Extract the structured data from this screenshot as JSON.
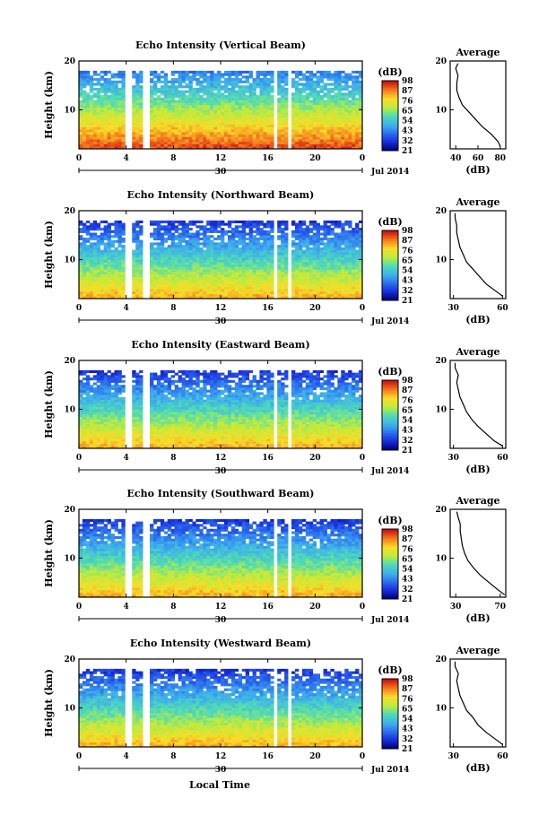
{
  "figure": {
    "xlabel": "Local Time",
    "date_label": "Jul 2014",
    "day_label": "30",
    "cbar_label": "(dB)",
    "avg_xlabel": "(dB)",
    "avg_title": "Average",
    "ylabel": "Height (km)"
  },
  "chart_data": [
    {
      "type": "heatmap",
      "title": "Echo Intensity (Vertical Beam)",
      "xlabel": "Local Time",
      "ylabel": "Height (km)",
      "x_ticks": [
        "0",
        "4",
        "8",
        "12",
        "16",
        "20",
        "0"
      ],
      "y_ticks": [
        "10",
        "20"
      ],
      "xlim": [
        0,
        24
      ],
      "ylim": [
        2,
        20
      ],
      "colorbar": {
        "label": "(dB)",
        "ticks": [
          "21",
          "32",
          "43",
          "54",
          "65",
          "76",
          "87",
          "98"
        ]
      },
      "data_gaps_hours": [
        [
          4.0,
          4.5
        ],
        [
          5.5,
          6.0
        ],
        [
          16.4,
          16.9
        ],
        [
          17.8,
          18.1
        ]
      ],
      "average_profile": {
        "title": "Average",
        "xlabel": "(dB)",
        "x_ticks": [
          "40",
          "60",
          "80"
        ],
        "xlim": [
          35,
          85
        ],
        "ylim": [
          2,
          20
        ],
        "height_km": [
          2.5,
          3.5,
          5,
          6.5,
          8,
          9.5,
          11,
          12.5,
          14,
          15.5,
          17,
          18.5,
          19.5
        ],
        "db": [
          80,
          78,
          72,
          64,
          58,
          52,
          46,
          43,
          41,
          41,
          42,
          40,
          42
        ]
      }
    },
    {
      "type": "heatmap",
      "title": "Echo Intensity (Northward Beam)",
      "xlabel": "Local Time",
      "ylabel": "Height (km)",
      "x_ticks": [
        "0",
        "4",
        "8",
        "12",
        "16",
        "20",
        "0"
      ],
      "y_ticks": [
        "10",
        "20"
      ],
      "xlim": [
        0,
        24
      ],
      "ylim": [
        2,
        20
      ],
      "colorbar": {
        "label": "(dB)",
        "ticks": [
          "21",
          "32",
          "43",
          "54",
          "65",
          "76",
          "87",
          "98"
        ]
      },
      "data_gaps_hours": [
        [
          4.0,
          4.5
        ],
        [
          5.5,
          6.0
        ],
        [
          16.4,
          16.9
        ],
        [
          17.8,
          18.1
        ]
      ],
      "average_profile": {
        "title": "Average",
        "xlabel": "(dB)",
        "x_ticks": [
          "30",
          "60"
        ],
        "xlim": [
          28,
          62
        ],
        "ylim": [
          2,
          20
        ],
        "height_km": [
          2.5,
          3.5,
          5,
          6.5,
          8,
          9.5,
          11,
          12.5,
          14,
          15.5,
          17,
          18.5,
          19.5
        ],
        "db": [
          60,
          56,
          50,
          46,
          42,
          38,
          36,
          34,
          33,
          32,
          32,
          31,
          31
        ]
      }
    },
    {
      "type": "heatmap",
      "title": "Echo Intensity (Eastward Beam)",
      "xlabel": "Local Time",
      "ylabel": "Height (km)",
      "x_ticks": [
        "0",
        "4",
        "8",
        "12",
        "16",
        "20",
        "0"
      ],
      "y_ticks": [
        "10",
        "20"
      ],
      "xlim": [
        0,
        24
      ],
      "ylim": [
        2,
        20
      ],
      "colorbar": {
        "label": "(dB)",
        "ticks": [
          "21",
          "32",
          "43",
          "54",
          "65",
          "76",
          "87",
          "98"
        ]
      },
      "data_gaps_hours": [
        [
          4.0,
          4.5
        ],
        [
          5.5,
          6.0
        ],
        [
          16.4,
          16.9
        ],
        [
          17.8,
          18.1
        ]
      ],
      "average_profile": {
        "title": "Average",
        "xlabel": "(dB)",
        "x_ticks": [
          "30",
          "60"
        ],
        "xlim": [
          28,
          62
        ],
        "ylim": [
          2,
          20
        ],
        "height_km": [
          2.5,
          3.5,
          5,
          6.5,
          8,
          9.5,
          11,
          12.5,
          14,
          15.5,
          17,
          18.5,
          19.5
        ],
        "db": [
          60,
          55,
          50,
          45,
          41,
          38,
          36,
          34,
          33,
          32,
          33,
          31,
          31
        ]
      }
    },
    {
      "type": "heatmap",
      "title": "Echo Intensity (Southward Beam)",
      "xlabel": "Local Time",
      "ylabel": "Height (km)",
      "x_ticks": [
        "0",
        "4",
        "8",
        "12",
        "16",
        "20",
        "0"
      ],
      "y_ticks": [
        "10",
        "20"
      ],
      "xlim": [
        0,
        24
      ],
      "ylim": [
        2,
        20
      ],
      "colorbar": {
        "label": "(dB)",
        "ticks": [
          "21",
          "32",
          "43",
          "54",
          "65",
          "76",
          "87",
          "98"
        ]
      },
      "data_gaps_hours": [
        [
          4.0,
          4.5
        ],
        [
          5.5,
          6.0
        ],
        [
          16.4,
          16.9
        ],
        [
          17.8,
          18.1
        ]
      ],
      "average_profile": {
        "title": "Average",
        "xlabel": "(dB)",
        "x_ticks": [
          "30",
          "70"
        ],
        "xlim": [
          25,
          75
        ],
        "ylim": [
          2,
          20
        ],
        "height_km": [
          2.5,
          3.5,
          5,
          6.5,
          8,
          9.5,
          11,
          12.5,
          14,
          15.5,
          17,
          18.5,
          19.5
        ],
        "db": [
          74,
          68,
          60,
          52,
          46,
          41,
          38,
          36,
          35,
          34,
          34,
          32,
          31
        ]
      }
    },
    {
      "type": "heatmap",
      "title": "Echo Intensity (Westward Beam)",
      "xlabel": "Local Time",
      "ylabel": "Height (km)",
      "x_ticks": [
        "0",
        "4",
        "8",
        "12",
        "16",
        "20",
        "0"
      ],
      "y_ticks": [
        "10",
        "20"
      ],
      "xlim": [
        0,
        24
      ],
      "ylim": [
        2,
        20
      ],
      "colorbar": {
        "label": "(dB)",
        "ticks": [
          "21",
          "32",
          "43",
          "54",
          "65",
          "76",
          "87",
          "98"
        ]
      },
      "data_gaps_hours": [
        [
          4.0,
          4.5
        ],
        [
          5.5,
          6.0
        ],
        [
          16.4,
          16.9
        ],
        [
          17.8,
          18.1
        ]
      ],
      "average_profile": {
        "title": "Average",
        "xlabel": "(dB)",
        "x_ticks": [
          "30",
          "60"
        ],
        "xlim": [
          28,
          62
        ],
        "ylim": [
          2,
          20
        ],
        "height_km": [
          2.5,
          3.5,
          5,
          6.5,
          8,
          9.5,
          11,
          12.5,
          14,
          15.5,
          17,
          18.5,
          19.5
        ],
        "db": [
          60,
          56,
          50,
          45,
          42,
          38,
          36,
          34,
          33,
          32,
          33,
          31,
          31
        ]
      }
    }
  ]
}
